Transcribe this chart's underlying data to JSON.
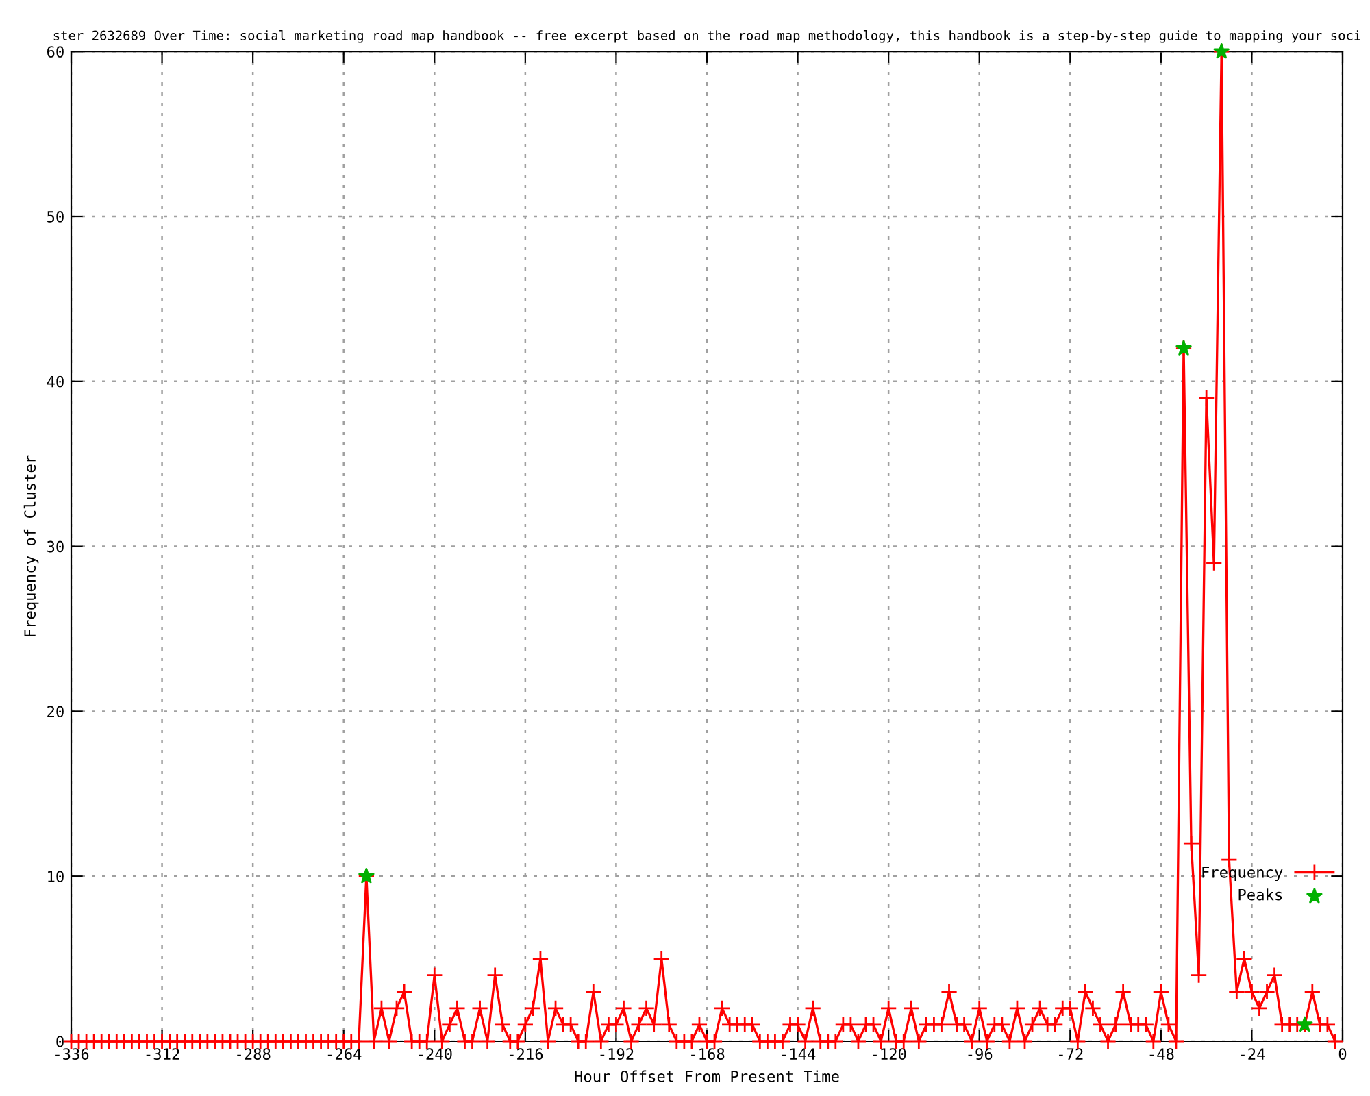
{
  "chart_data": {
    "type": "line",
    "title": "ster 2632689 Over Time: social marketing road map handbook -- free excerpt based on the road map methodology, this handbook is a step-by-step guide to mapping your soci",
    "xlabel": "Hour Offset From Present Time",
    "ylabel": "Frequency of Cluster",
    "series": [
      {
        "name": "Frequency",
        "color": "#ff0000",
        "marker": "cross",
        "x": [
          -336,
          -334,
          -332,
          -330,
          -328,
          -326,
          -324,
          -322,
          -320,
          -318,
          -316,
          -314,
          -312,
          -310,
          -308,
          -306,
          -304,
          -302,
          -300,
          -298,
          -296,
          -294,
          -292,
          -290,
          -288,
          -286,
          -284,
          -282,
          -280,
          -278,
          -276,
          -274,
          -272,
          -270,
          -268,
          -266,
          -264,
          -262,
          -260,
          -258,
          -256,
          -254,
          -252,
          -250,
          -248,
          -246,
          -244,
          -242,
          -240,
          -238,
          -236,
          -234,
          -232,
          -230,
          -228,
          -226,
          -224,
          -222,
          -220,
          -218,
          -216,
          -214,
          -212,
          -210,
          -208,
          -206,
          -204,
          -202,
          -200,
          -198,
          -196,
          -194,
          -192,
          -190,
          -188,
          -186,
          -184,
          -182,
          -180,
          -178,
          -176,
          -174,
          -172,
          -170,
          -168,
          -166,
          -164,
          -162,
          -160,
          -158,
          -156,
          -154,
          -152,
          -150,
          -148,
          -146,
          -144,
          -142,
          -140,
          -138,
          -136,
          -134,
          -132,
          -130,
          -128,
          -126,
          -124,
          -122,
          -120,
          -118,
          -116,
          -114,
          -112,
          -110,
          -108,
          -106,
          -104,
          -102,
          -100,
          -98,
          -96,
          -94,
          -92,
          -90,
          -88,
          -86,
          -84,
          -82,
          -80,
          -78,
          -76,
          -74,
          -72,
          -70,
          -68,
          -66,
          -64,
          -62,
          -60,
          -58,
          -56,
          -54,
          -52,
          -50,
          -48,
          -46,
          -44,
          -42,
          -40,
          -38,
          -36,
          -34,
          -32,
          -30,
          -28,
          -26,
          -24,
          -22,
          -20,
          -18,
          -16,
          -14,
          -12,
          -10,
          -8,
          -6,
          -4,
          -2
        ],
        "values": [
          0,
          0,
          0,
          0,
          0,
          0,
          0,
          0,
          0,
          0,
          0,
          0,
          0,
          0,
          0,
          0,
          0,
          0,
          0,
          0,
          0,
          0,
          0,
          0,
          0,
          0,
          0,
          0,
          0,
          0,
          0,
          0,
          0,
          0,
          0,
          0,
          0,
          0,
          0,
          10,
          0,
          2,
          0,
          2,
          3,
          0,
          0,
          0,
          4,
          0,
          1,
          2,
          0,
          0,
          2,
          0,
          4,
          1,
          0,
          0,
          1,
          2,
          5,
          0,
          2,
          1,
          1,
          0,
          0,
          3,
          0,
          1,
          1,
          2,
          0,
          1,
          2,
          1,
          5,
          1,
          0,
          0,
          0,
          1,
          0,
          0,
          2,
          1,
          1,
          1,
          1,
          0,
          0,
          0,
          0,
          1,
          1,
          0,
          2,
          0,
          0,
          0,
          1,
          1,
          0,
          1,
          1,
          0,
          2,
          0,
          0,
          2,
          0,
          1,
          1,
          1,
          3,
          1,
          1,
          0,
          2,
          0,
          1,
          1,
          0,
          2,
          0,
          1,
          2,
          1,
          1,
          2,
          2,
          0,
          3,
          2,
          1,
          0,
          1,
          3,
          1,
          1,
          1,
          0,
          3,
          1,
          0,
          42,
          12,
          4,
          39,
          29,
          60,
          11,
          3,
          5,
          3,
          2,
          3,
          4,
          1,
          1,
          1,
          1,
          3,
          1,
          1,
          0
        ]
      },
      {
        "name": "Peaks",
        "type": "scatter",
        "color": "#00b000",
        "marker": "star",
        "x": [
          -258,
          -42,
          -32,
          -10
        ],
        "values": [
          10,
          42,
          60,
          1
        ]
      }
    ],
    "xlim": [
      -336,
      0
    ],
    "xticks": [
      -336,
      -312,
      -288,
      -264,
      -240,
      -216,
      -192,
      -168,
      -144,
      -120,
      -96,
      -72,
      -48,
      -24,
      0
    ],
    "ylim": [
      0,
      60
    ],
    "yticks": [
      0,
      10,
      20,
      30,
      40,
      50,
      60
    ],
    "grid": true,
    "legend": "bottom right"
  }
}
